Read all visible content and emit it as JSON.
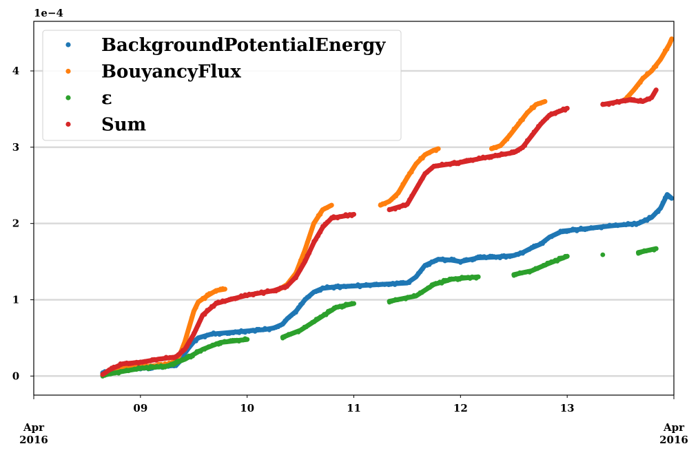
{
  "chart_data": {
    "type": "scatter",
    "title": "",
    "xlabel": "",
    "ylabel": "",
    "y_scale_label": "1e−4",
    "ylim": [
      -2.5e-05,
      0.000465
    ],
    "xlim": [
      "2016-04-08T00:00",
      "2016-04-14T00:00"
    ],
    "grid": "y",
    "legend_position": "top-left",
    "x_ticks": [
      {
        "value": "2016-04-08T00:00",
        "label": "Apr\n2016"
      },
      {
        "value": "2016-04-09T00:00",
        "label": "09"
      },
      {
        "value": "2016-04-10T00:00",
        "label": "10"
      },
      {
        "value": "2016-04-11T00:00",
        "label": "11"
      },
      {
        "value": "2016-04-12T00:00",
        "label": "12"
      },
      {
        "value": "2016-04-13T00:00",
        "label": "13"
      },
      {
        "value": "2016-04-14T00:00",
        "label": "Apr\n2016"
      }
    ],
    "y_ticks": [
      {
        "value": 0,
        "label": "0"
      },
      {
        "value": 0.0001,
        "label": "1"
      },
      {
        "value": 0.0002,
        "label": "2"
      },
      {
        "value": 0.0003,
        "label": "3"
      },
      {
        "value": 0.0004,
        "label": "4"
      }
    ],
    "series": [
      {
        "name": "BackgroundPotentialEnergy",
        "color": "#1f77b4",
        "points": [
          [
            "2016-04-08T15:30",
            4e-06
          ],
          [
            "2016-04-08T18:00",
            8e-06
          ],
          [
            "2016-04-08T20:00",
            1e-05
          ],
          [
            "2016-04-08T22:00",
            1e-05
          ],
          [
            "2016-04-09T00:00",
            1e-05
          ],
          [
            "2016-04-09T04:00",
            1.2e-05
          ],
          [
            "2016-04-09T08:00",
            1.4e-05
          ],
          [
            "2016-04-09T09:00",
            2e-05
          ],
          [
            "2016-04-09T10:00",
            3e-05
          ],
          [
            "2016-04-09T11:00",
            3.8e-05
          ],
          [
            "2016-04-09T12:00",
            4.5e-05
          ],
          [
            "2016-04-09T13:00",
            5e-05
          ],
          [
            "2016-04-09T16:00",
            5.5e-05
          ],
          [
            "2016-04-09T20:00",
            5.7e-05
          ],
          [
            "2016-04-10T00:00",
            5.9e-05
          ],
          [
            "2016-04-10T04:00",
            6.1e-05
          ],
          [
            "2016-04-10T06:00",
            6.3e-05
          ],
          [
            "2016-04-10T08:00",
            6.8e-05
          ],
          [
            "2016-04-10T09:00",
            7.5e-05
          ],
          [
            "2016-04-10T11:00",
            8.5e-05
          ],
          [
            "2016-04-10T13:00",
            0.0001
          ],
          [
            "2016-04-10T15:00",
            0.00011
          ],
          [
            "2016-04-10T17:00",
            0.000115
          ],
          [
            "2016-04-10T20:00",
            0.000117
          ],
          [
            "2016-04-11T00:00",
            0.000118
          ],
          [
            "2016-04-11T06:00",
            0.00012
          ],
          [
            "2016-04-11T12:00",
            0.000122
          ],
          [
            "2016-04-11T14:00",
            0.00013
          ],
          [
            "2016-04-11T16:00",
            0.000145
          ],
          [
            "2016-04-11T19:00",
            0.000153
          ],
          [
            "2016-04-11T22:00",
            0.000152
          ],
          [
            "2016-04-12T00:00",
            0.00015
          ],
          [
            "2016-04-12T04:00",
            0.000155
          ],
          [
            "2016-04-12T08:00",
            0.000156
          ],
          [
            "2016-04-12T12:00",
            0.000158
          ],
          [
            "2016-04-12T14:00",
            0.000162
          ],
          [
            "2016-04-12T16:00",
            0.000168
          ],
          [
            "2016-04-12T18:00",
            0.000173
          ],
          [
            "2016-04-12T20:00",
            0.000182
          ],
          [
            "2016-04-12T23:00",
            0.00019
          ],
          [
            "2016-04-13T04:00",
            0.000193
          ],
          [
            "2016-04-13T10:00",
            0.000197
          ],
          [
            "2016-04-13T16:00",
            0.0002
          ],
          [
            "2016-04-13T19:00",
            0.000208
          ],
          [
            "2016-04-13T21:00",
            0.00022
          ],
          [
            "2016-04-13T22:30",
            0.000238
          ],
          [
            "2016-04-13T23:30",
            0.000233
          ]
        ]
      },
      {
        "name": "BouyancyFlux",
        "color": "#ff7f0e",
        "points": [
          [
            "2016-04-08T15:30",
            1e-06
          ],
          [
            "2016-04-08T18:00",
            1e-05
          ],
          [
            "2016-04-09T00:00",
            1.2e-05
          ],
          [
            "2016-04-09T06:00",
            1.5e-05
          ],
          [
            "2016-04-09T08:00",
            2e-05
          ],
          [
            "2016-04-09T09:00",
            3e-05
          ],
          [
            "2016-04-09T10:00",
            4.5e-05
          ],
          [
            "2016-04-09T11:00",
            6.5e-05
          ],
          [
            "2016-04-09T12:00",
            8.5e-05
          ],
          [
            "2016-04-09T13:00",
            9.7e-05
          ],
          [
            "2016-04-09T15:00",
            0.000105
          ],
          [
            "2016-04-09T17:00",
            0.000112
          ],
          [
            "2016-04-09T19:00",
            0.000114
          ],
          [
            "2016-04-10T07:00",
            0.000113
          ],
          [
            "2016-04-10T09:00",
            0.00012
          ],
          [
            "2016-04-10T11:00",
            0.000135
          ],
          [
            "2016-04-10T13:00",
            0.000165
          ],
          [
            "2016-04-10T15:00",
            0.0002
          ],
          [
            "2016-04-10T17:00",
            0.000218
          ],
          [
            "2016-04-10T19:00",
            0.000224
          ],
          [
            "2016-04-11T06:00",
            0.000224
          ],
          [
            "2016-04-11T08:00",
            0.000229
          ],
          [
            "2016-04-11T10:00",
            0.00024
          ],
          [
            "2016-04-11T12:00",
            0.00026
          ],
          [
            "2016-04-11T14:00",
            0.000278
          ],
          [
            "2016-04-11T16:00",
            0.00029
          ],
          [
            "2016-04-11T18:00",
            0.000296
          ],
          [
            "2016-04-11T19:00",
            0.000298
          ],
          [
            "2016-04-12T07:00",
            0.000298
          ],
          [
            "2016-04-12T09:00",
            0.000302
          ],
          [
            "2016-04-12T11:00",
            0.000315
          ],
          [
            "2016-04-12T13:00",
            0.00033
          ],
          [
            "2016-04-12T15:00",
            0.000345
          ],
          [
            "2016-04-12T17:00",
            0.000356
          ],
          [
            "2016-04-12T19:00",
            0.00036
          ],
          [
            "2016-04-13T13:00",
            0.000362
          ],
          [
            "2016-04-13T15:00",
            0.000375
          ],
          [
            "2016-04-13T17:00",
            0.00039
          ],
          [
            "2016-04-13T19:00",
            0.0004
          ],
          [
            "2016-04-13T21:00",
            0.000415
          ],
          [
            "2016-04-13T23:00",
            0.000435
          ],
          [
            "2016-04-13T23:30",
            0.000442
          ]
        ]
      },
      {
        "name": "ε",
        "color": "#2ca02c",
        "points": [
          [
            "2016-04-08T15:30",
            1e-06
          ],
          [
            "2016-04-08T20:00",
            6e-06
          ],
          [
            "2016-04-09T00:00",
            1e-05
          ],
          [
            "2016-04-09T06:00",
            1.3e-05
          ],
          [
            "2016-04-09T10:00",
            2.2e-05
          ],
          [
            "2016-04-09T14:00",
            3.5e-05
          ],
          [
            "2016-04-09T18:00",
            4.4e-05
          ],
          [
            "2016-04-10T00:00",
            4.8e-05
          ],
          [
            "2016-04-10T08:00",
            5.1e-05
          ],
          [
            "2016-04-10T12:00",
            6e-05
          ],
          [
            "2016-04-10T16:00",
            7.5e-05
          ],
          [
            "2016-04-10T20:00",
            9e-05
          ],
          [
            "2016-04-11T00:00",
            9.5e-05
          ],
          [
            "2016-04-11T08:00",
            9.8e-05
          ],
          [
            "2016-04-11T14:00",
            0.000105
          ],
          [
            "2016-04-11T18:00",
            0.00012
          ],
          [
            "2016-04-11T22:00",
            0.000127
          ],
          [
            "2016-04-12T04:00",
            0.00013
          ],
          [
            "2016-04-12T12:00",
            0.000133
          ],
          [
            "2016-04-12T16:00",
            0.000138
          ],
          [
            "2016-04-12T20:00",
            0.000148
          ],
          [
            "2016-04-13T00:00",
            0.000157
          ],
          [
            "2016-04-13T08:00",
            0.000159
          ],
          [
            "2016-04-13T16:00",
            0.000162
          ],
          [
            "2016-04-13T20:00",
            0.000167
          ]
        ]
      },
      {
        "name": "Sum",
        "color": "#d62728",
        "points": [
          [
            "2016-04-08T15:30",
            2e-06
          ],
          [
            "2016-04-08T17:00",
            8e-06
          ],
          [
            "2016-04-08T20:00",
            1.6e-05
          ],
          [
            "2016-04-09T00:00",
            1.8e-05
          ],
          [
            "2016-04-09T04:00",
            2.2e-05
          ],
          [
            "2016-04-09T08:00",
            2.5e-05
          ],
          [
            "2016-04-09T10:00",
            3.5e-05
          ],
          [
            "2016-04-09T12:00",
            5.5e-05
          ],
          [
            "2016-04-09T14:00",
            8e-05
          ],
          [
            "2016-04-09T17:00",
            9.5e-05
          ],
          [
            "2016-04-09T20:00",
            0.0001
          ],
          [
            "2016-04-10T00:00",
            0.000106
          ],
          [
            "2016-04-10T06:00",
            0.000112
          ],
          [
            "2016-04-10T09:00",
            0.000118
          ],
          [
            "2016-04-10T11:00",
            0.00013
          ],
          [
            "2016-04-10T13:00",
            0.00015
          ],
          [
            "2016-04-10T15:00",
            0.000175
          ],
          [
            "2016-04-10T17:00",
            0.000195
          ],
          [
            "2016-04-10T19:00",
            0.000207
          ],
          [
            "2016-04-11T00:00",
            0.000212
          ],
          [
            "2016-04-11T08:00",
            0.000218
          ],
          [
            "2016-04-11T12:00",
            0.000225
          ],
          [
            "2016-04-11T14:00",
            0.000245
          ],
          [
            "2016-04-11T16:00",
            0.000265
          ],
          [
            "2016-04-11T18:00",
            0.000275
          ],
          [
            "2016-04-12T00:00",
            0.00028
          ],
          [
            "2016-04-12T06:00",
            0.000287
          ],
          [
            "2016-04-12T12:00",
            0.000293
          ],
          [
            "2016-04-12T14:00",
            0.0003
          ],
          [
            "2016-04-12T16:00",
            0.000315
          ],
          [
            "2016-04-12T18:00",
            0.00033
          ],
          [
            "2016-04-12T20:00",
            0.000342
          ],
          [
            "2016-04-13T00:00",
            0.000351
          ],
          [
            "2016-04-13T08:00",
            0.000356
          ],
          [
            "2016-04-13T14:00",
            0.000362
          ],
          [
            "2016-04-13T17:00",
            0.00036
          ],
          [
            "2016-04-13T19:00",
            0.000365
          ],
          [
            "2016-04-13T20:00",
            0.000375
          ]
        ]
      }
    ]
  }
}
